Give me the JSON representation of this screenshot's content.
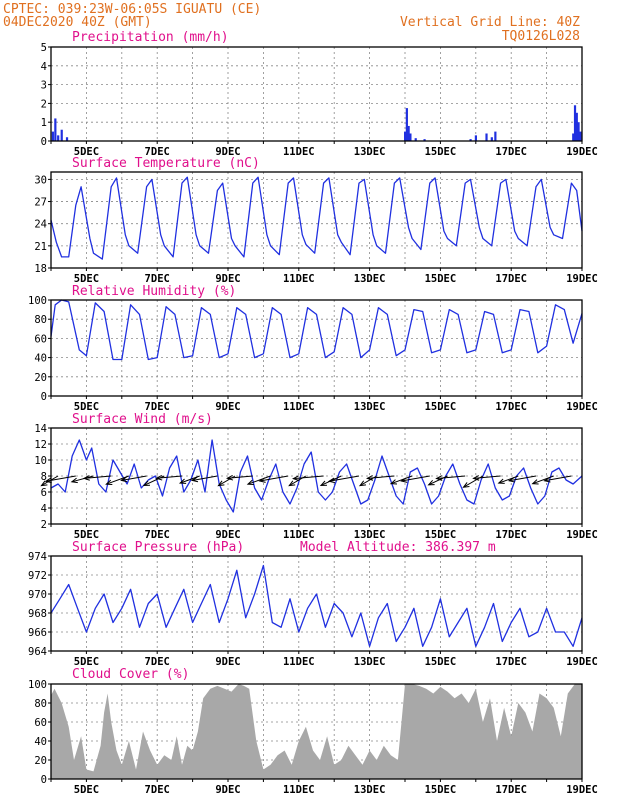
{
  "header": {
    "line1_left": "CPTEC:  039:23W-06:05S  IGUATU (CE)",
    "line2_left": "04DEC2020 40Z (GMT)",
    "line1_right": "Vertical Grid Line: 40Z",
    "line2_right": "TQ0126L028"
  },
  "colors": {
    "header": "#e07020",
    "title": "#e0108c",
    "series": "#2030e0",
    "cloud": "#a8a8a8",
    "frame": "#000000",
    "grid": "#888888"
  },
  "date_labels": [
    "5DEC",
    "7DEC",
    "9DEC",
    "11DEC",
    "13DEC",
    "15DEC",
    "17DEC",
    "19DEC"
  ],
  "chart_data": [
    {
      "id": "precip",
      "type": "bar",
      "title": "Precipitation (mm/h)",
      "ylim": [
        0,
        5
      ],
      "yticks": [
        0,
        1,
        2,
        3,
        4,
        5
      ],
      "grid": true,
      "x": [
        4.05,
        4.12,
        4.2,
        4.3,
        4.45,
        14.0,
        14.05,
        14.1,
        14.15,
        14.3,
        14.55,
        15.85,
        16.0,
        16.3,
        16.45,
        16.55,
        18.75,
        18.8,
        18.85,
        18.9,
        18.95
      ],
      "values": [
        0.5,
        1.2,
        0.3,
        0.6,
        0.2,
        0.5,
        1.75,
        0.8,
        0.4,
        0.15,
        0.1,
        0.1,
        0.3,
        0.4,
        0.2,
        0.5,
        0.4,
        1.9,
        1.5,
        1.0,
        0.5
      ]
    },
    {
      "id": "temp",
      "type": "line",
      "title": "Surface Temperature (nC)",
      "ylim": [
        18,
        31
      ],
      "yticks": [
        18,
        21,
        24,
        27,
        30
      ],
      "grid": true,
      "x": [
        4.0,
        4.15,
        4.3,
        4.5,
        4.7,
        4.85,
        5.1,
        5.2,
        5.45,
        5.7,
        5.85,
        6.1,
        6.2,
        6.45,
        6.7,
        6.85,
        7.1,
        7.2,
        7.45,
        7.7,
        7.85,
        8.1,
        8.2,
        8.45,
        8.7,
        8.85,
        9.1,
        9.2,
        9.45,
        9.7,
        9.85,
        10.1,
        10.2,
        10.45,
        10.7,
        10.85,
        11.1,
        11.2,
        11.45,
        11.7,
        11.85,
        12.1,
        12.2,
        12.45,
        12.7,
        12.85,
        13.1,
        13.2,
        13.45,
        13.7,
        13.85,
        14.1,
        14.2,
        14.45,
        14.7,
        14.85,
        15.1,
        15.2,
        15.45,
        15.7,
        15.85,
        16.1,
        16.2,
        16.45,
        16.7,
        16.85,
        17.1,
        17.2,
        17.45,
        17.7,
        17.85,
        18.1,
        18.2,
        18.45,
        18.7,
        18.85,
        19.0
      ],
      "values": [
        24.5,
        21.5,
        19.5,
        19.5,
        26.5,
        29.0,
        22.0,
        20.0,
        19.2,
        29.0,
        30.2,
        22.5,
        21.0,
        20.0,
        29.0,
        30.0,
        22.5,
        21.0,
        19.5,
        29.5,
        30.3,
        22.5,
        21.0,
        20.0,
        28.5,
        29.5,
        22.0,
        21.0,
        19.5,
        29.5,
        30.3,
        22.5,
        21.0,
        19.8,
        29.5,
        30.2,
        22.5,
        21.2,
        20.0,
        29.5,
        30.2,
        22.5,
        21.5,
        19.8,
        29.5,
        30.0,
        22.5,
        21.0,
        20.0,
        29.5,
        30.2,
        23.5,
        22.0,
        20.5,
        29.5,
        30.2,
        23.0,
        22.0,
        21.0,
        29.5,
        30.0,
        23.5,
        22.0,
        21.0,
        29.5,
        30.0,
        23.0,
        22.0,
        21.0,
        29.0,
        30.0,
        23.5,
        22.5,
        22.0,
        29.5,
        28.5,
        23.0
      ]
    },
    {
      "id": "rh",
      "type": "line",
      "title": "Relative Humidity (%)",
      "ylim": [
        0,
        100
      ],
      "yticks": [
        0,
        20,
        40,
        60,
        80,
        100
      ],
      "grid": true,
      "x": [
        4.0,
        4.12,
        4.3,
        4.5,
        4.8,
        5.0,
        5.25,
        5.5,
        5.75,
        6.0,
        6.25,
        6.5,
        6.75,
        7.0,
        7.25,
        7.5,
        7.75,
        8.0,
        8.25,
        8.5,
        8.75,
        9.0,
        9.25,
        9.5,
        9.75,
        10.0,
        10.25,
        10.5,
        10.75,
        11.0,
        11.25,
        11.5,
        11.75,
        12.0,
        12.25,
        12.5,
        12.75,
        13.0,
        13.25,
        13.5,
        13.75,
        14.0,
        14.25,
        14.5,
        14.75,
        15.0,
        15.25,
        15.5,
        15.75,
        16.0,
        16.25,
        16.5,
        16.75,
        17.0,
        17.25,
        17.5,
        17.75,
        18.0,
        18.25,
        18.5,
        18.75,
        19.0
      ],
      "values": [
        62,
        95,
        100,
        98,
        48,
        42,
        97,
        88,
        38,
        38,
        95,
        85,
        38,
        40,
        93,
        85,
        40,
        42,
        92,
        85,
        40,
        44,
        92,
        85,
        40,
        44,
        92,
        85,
        40,
        44,
        92,
        85,
        40,
        46,
        92,
        85,
        40,
        48,
        92,
        85,
        42,
        48,
        90,
        88,
        45,
        48,
        90,
        85,
        45,
        48,
        88,
        85,
        45,
        48,
        90,
        88,
        45,
        52,
        95,
        90,
        55,
        86
      ]
    },
    {
      "id": "wind",
      "type": "line",
      "title": "Surface Wind (m/s)",
      "ylim": [
        2,
        14
      ],
      "yticks": [
        2,
        4,
        6,
        8,
        10,
        12,
        14
      ],
      "grid": true,
      "x": [
        4.0,
        4.2,
        4.4,
        4.6,
        4.8,
        5.0,
        5.15,
        5.35,
        5.55,
        5.75,
        5.95,
        6.15,
        6.35,
        6.55,
        6.75,
        6.95,
        7.15,
        7.35,
        7.55,
        7.75,
        7.95,
        8.15,
        8.35,
        8.55,
        8.75,
        8.95,
        9.15,
        9.35,
        9.55,
        9.75,
        9.95,
        10.15,
        10.35,
        10.55,
        10.75,
        10.95,
        11.15,
        11.35,
        11.55,
        11.75,
        11.95,
        12.15,
        12.35,
        12.55,
        12.75,
        12.95,
        13.15,
        13.35,
        13.55,
        13.75,
        13.95,
        14.15,
        14.35,
        14.55,
        14.75,
        14.95,
        15.15,
        15.35,
        15.55,
        15.75,
        15.95,
        16.15,
        16.35,
        16.55,
        16.75,
        16.95,
        17.15,
        17.35,
        17.55,
        17.75,
        17.95,
        18.15,
        18.35,
        18.55,
        18.75,
        19.0
      ],
      "values": [
        6.5,
        7.0,
        6.0,
        10.5,
        12.5,
        10.0,
        11.5,
        7.0,
        6.0,
        10.0,
        8.5,
        7.0,
        9.5,
        6.5,
        7.5,
        8.0,
        5.5,
        9.0,
        10.5,
        6.0,
        7.5,
        10.0,
        6.0,
        12.5,
        7.0,
        5.0,
        3.5,
        8.5,
        10.5,
        6.5,
        5.0,
        7.5,
        9.5,
        6.0,
        4.5,
        6.5,
        9.5,
        11.0,
        6.0,
        5.0,
        6.0,
        8.5,
        9.5,
        7.0,
        4.5,
        5.0,
        7.5,
        10.5,
        8.0,
        5.5,
        4.5,
        8.5,
        9.0,
        7.0,
        4.5,
        5.5,
        8.0,
        9.5,
        7.0,
        5.0,
        4.5,
        7.5,
        9.5,
        6.5,
        5.0,
        5.5,
        8.0,
        9.0,
        6.5,
        4.5,
        5.5,
        8.5,
        9.0,
        7.5,
        7.0,
        8.0
      ]
    },
    {
      "id": "pressure",
      "type": "line",
      "title": "Surface Pressure (hPa)",
      "annotation": "Model Altitude: 386.397 m",
      "ylim": [
        964,
        974
      ],
      "yticks": [
        964,
        966,
        968,
        970,
        972,
        974
      ],
      "grid": true,
      "x": [
        4.0,
        4.25,
        4.5,
        4.75,
        5.0,
        5.25,
        5.5,
        5.75,
        6.0,
        6.25,
        6.5,
        6.75,
        7.0,
        7.25,
        7.5,
        7.75,
        8.0,
        8.25,
        8.5,
        8.75,
        9.0,
        9.25,
        9.5,
        9.75,
        10.0,
        10.25,
        10.5,
        10.75,
        11.0,
        11.25,
        11.5,
        11.75,
        12.0,
        12.25,
        12.5,
        12.75,
        13.0,
        13.25,
        13.5,
        13.75,
        14.0,
        14.25,
        14.5,
        14.75,
        15.0,
        15.25,
        15.5,
        15.75,
        16.0,
        16.25,
        16.5,
        16.75,
        17.0,
        17.25,
        17.5,
        17.75,
        18.0,
        18.25,
        18.5,
        18.75,
        19.0
      ],
      "values": [
        968.0,
        969.5,
        971.0,
        968.5,
        966.0,
        968.5,
        970.0,
        967.0,
        968.5,
        970.5,
        966.5,
        969.0,
        970.0,
        966.5,
        968.5,
        970.5,
        967.0,
        969.0,
        971.0,
        967.0,
        969.5,
        972.5,
        967.5,
        970.0,
        973.0,
        967.0,
        966.5,
        969.5,
        966.0,
        968.5,
        970.0,
        966.5,
        969.0,
        968.0,
        965.5,
        968.0,
        964.5,
        967.5,
        969.0,
        965.0,
        966.5,
        968.5,
        964.5,
        966.5,
        969.5,
        965.5,
        967.0,
        968.5,
        964.5,
        966.5,
        969.0,
        965.0,
        967.0,
        968.5,
        965.5,
        966.0,
        968.5,
        966.0,
        966.0,
        964.5,
        967.5
      ]
    },
    {
      "id": "cloud",
      "type": "area",
      "title": "Cloud Cover (%)",
      "ylim": [
        0,
        100
      ],
      "yticks": [
        0,
        20,
        40,
        60,
        80,
        100
      ],
      "grid": true,
      "x": [
        4.0,
        4.1,
        4.3,
        4.5,
        4.65,
        4.85,
        5.0,
        5.2,
        5.4,
        5.5,
        5.6,
        5.7,
        5.85,
        6.0,
        6.2,
        6.4,
        6.6,
        6.8,
        7.0,
        7.2,
        7.4,
        7.55,
        7.7,
        7.85,
        8.0,
        8.15,
        8.3,
        8.5,
        8.7,
        8.9,
        9.1,
        9.3,
        9.45,
        9.6,
        9.8,
        10.0,
        10.2,
        10.4,
        10.6,
        10.8,
        11.0,
        11.2,
        11.4,
        11.6,
        11.8,
        12.0,
        12.2,
        12.4,
        12.6,
        12.8,
        13.0,
        13.2,
        13.4,
        13.6,
        13.8,
        13.9,
        14.0,
        14.2,
        14.4,
        14.6,
        14.8,
        15.0,
        15.2,
        15.4,
        15.6,
        15.8,
        16.0,
        16.2,
        16.4,
        16.6,
        16.8,
        17.0,
        17.2,
        17.4,
        17.6,
        17.8,
        18.0,
        18.2,
        18.4,
        18.6,
        18.8,
        19.0
      ],
      "values": [
        88,
        95,
        80,
        55,
        20,
        45,
        10,
        8,
        35,
        70,
        90,
        60,
        30,
        15,
        40,
        10,
        50,
        30,
        15,
        25,
        20,
        45,
        15,
        35,
        30,
        50,
        85,
        95,
        98,
        95,
        92,
        100,
        98,
        95,
        40,
        10,
        15,
        25,
        30,
        15,
        40,
        55,
        30,
        20,
        45,
        15,
        20,
        35,
        25,
        15,
        30,
        20,
        35,
        25,
        20,
        60,
        100,
        100,
        98,
        95,
        90,
        97,
        92,
        85,
        90,
        80,
        95,
        60,
        85,
        40,
        75,
        45,
        80,
        70,
        50,
        90,
        85,
        75,
        45,
        90,
        100,
        100
      ]
    }
  ],
  "wind_vectors": {
    "x": [
      4.2,
      4.7,
      5.2,
      5.7,
      6.2,
      6.7,
      7.2,
      7.7,
      8.2,
      8.7,
      9.2,
      9.7,
      10.2,
      10.7,
      11.2,
      11.7,
      12.2,
      12.7,
      13.2,
      13.7,
      14.2,
      14.7,
      15.2,
      15.7,
      16.2,
      16.7,
      17.2,
      17.7,
      18.2,
      18.7
    ],
    "speed": [
      6.0,
      9.5,
      7.0,
      8.5,
      7.5,
      8.0,
      7.0,
      8.0,
      6.5,
      8.0,
      6.0,
      8.0,
      7.5,
      9.0,
      6.0,
      9.5,
      7.0,
      9.5,
      6.0,
      8.5,
      7.0,
      9.0,
      6.5,
      9.0,
      7.0,
      8.5,
      6.5,
      8.5,
      7.0,
      8.5
    ],
    "direction_deg": [
      120,
      100,
      105,
      95,
      110,
      100,
      115,
      95,
      110,
      100,
      120,
      95,
      110,
      100,
      120,
      95,
      115,
      100,
      120,
      95,
      110,
      100,
      115,
      95,
      120,
      95,
      110,
      100,
      110,
      100
    ]
  }
}
